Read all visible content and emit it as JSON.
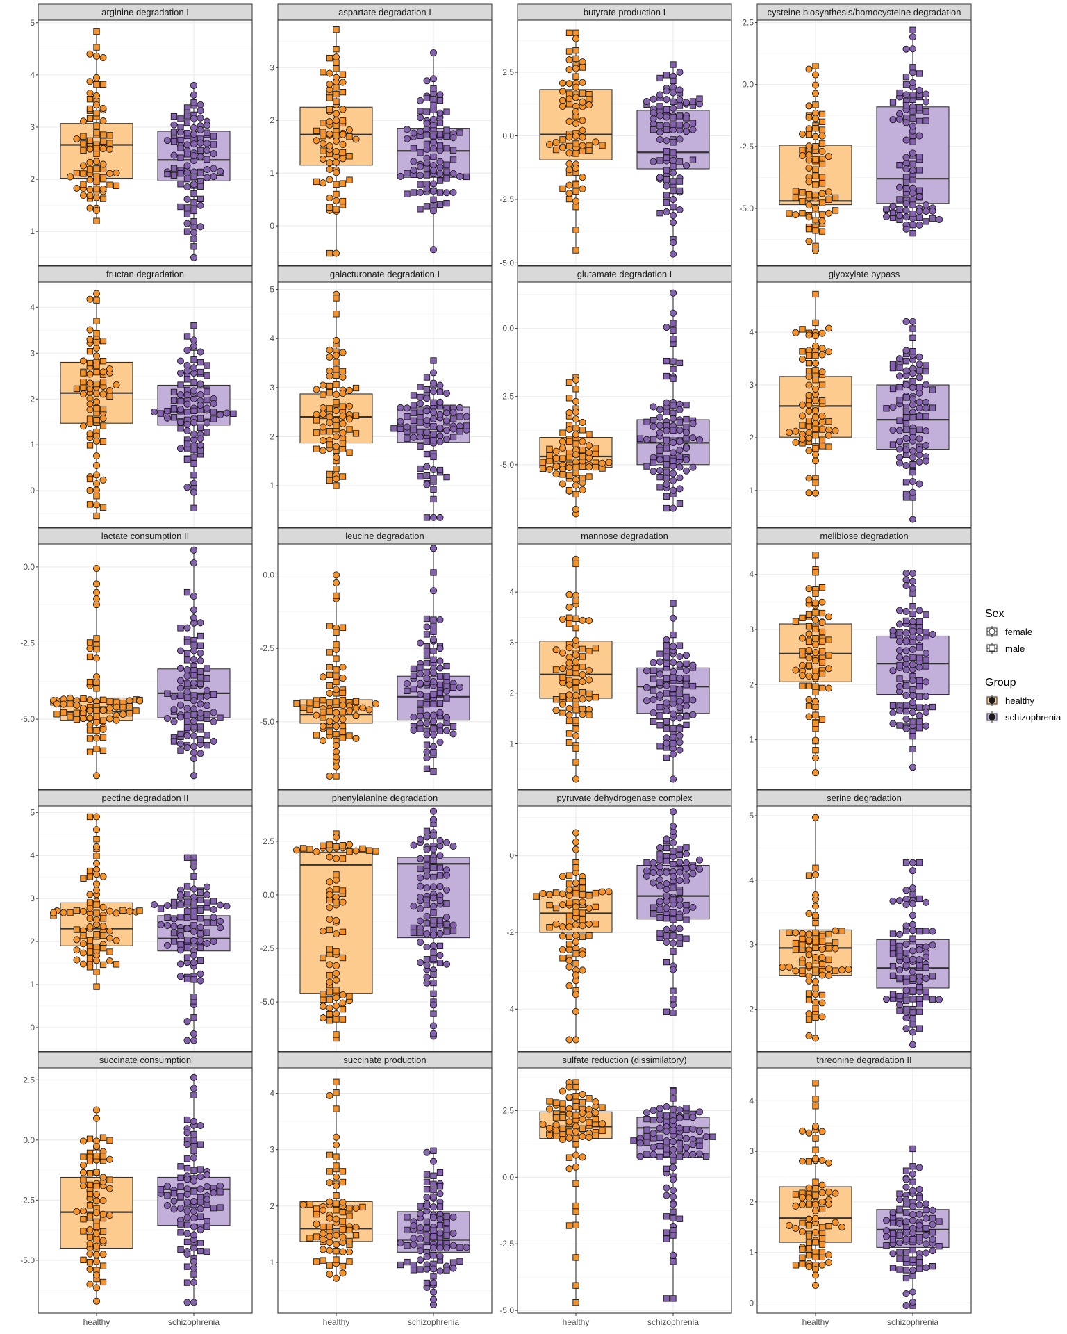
{
  "colors": {
    "healthy": "#F5932A",
    "schizophrenia": "#8462AE",
    "healthy_box": "#FDCB8E",
    "schizophrenia_box": "#C3B0DA"
  },
  "x_categories": [
    "healthy",
    "schizophrenia"
  ],
  "legend": {
    "sex_title": "Sex",
    "sex_items": [
      {
        "label": "female",
        "shape": "circle"
      },
      {
        "label": "male",
        "shape": "square"
      }
    ],
    "group_title": "Group",
    "group_items": [
      {
        "label": "healthy",
        "color": "#F5932A"
      },
      {
        "label": "schizophrenia",
        "color": "#8462AE"
      }
    ]
  },
  "chart_data": [
    {
      "type": "box",
      "title": "arginine degradation I",
      "ylim": [
        0.35,
        5.05
      ],
      "yticks": [
        1,
        2,
        3,
        4,
        5
      ],
      "ytick_labels": [
        "1",
        "2",
        "3",
        "4",
        "5"
      ],
      "series": [
        {
          "name": "healthy",
          "q1": 2.02,
          "median": 2.66,
          "q3": 3.07,
          "min": 1.2,
          "max": 4.83,
          "n": 80
        },
        {
          "name": "schizophrenia",
          "q1": 1.97,
          "median": 2.37,
          "q3": 2.92,
          "min": 0.5,
          "max": 3.8,
          "n": 100
        }
      ]
    },
    {
      "type": "box",
      "title": "aspartate degradation I",
      "ylim": [
        -0.75,
        3.9
      ],
      "yticks": [
        0,
        1,
        2,
        3
      ],
      "ytick_labels": [
        "0",
        "1",
        "2",
        "3"
      ],
      "series": [
        {
          "name": "healthy",
          "q1": 1.15,
          "median": 1.73,
          "q3": 2.25,
          "min": -0.52,
          "max": 3.72,
          "n": 80
        },
        {
          "name": "schizophrenia",
          "q1": 0.92,
          "median": 1.42,
          "q3": 1.85,
          "min": -0.45,
          "max": 3.28,
          "n": 100
        }
      ]
    },
    {
      "type": "box",
      "title": "butyrate production I",
      "ylim": [
        -5.1,
        4.55
      ],
      "yticks": [
        -5,
        -2.5,
        0,
        2.5
      ],
      "ytick_labels": [
        "-5.0",
        "-2.5",
        "0.0",
        "2.5"
      ],
      "series": [
        {
          "name": "healthy",
          "q1": -0.95,
          "median": 0.05,
          "q3": 1.82,
          "min": -4.5,
          "max": 4.05,
          "n": 80
        },
        {
          "name": "schizophrenia",
          "q1": -1.3,
          "median": -0.65,
          "q3": 1.0,
          "min": -4.65,
          "max": 2.8,
          "n": 100
        }
      ]
    },
    {
      "type": "box",
      "title": "cysteine biosynthesis/homocysteine degradation",
      "ylim": [
        -7.3,
        2.6
      ],
      "yticks": [
        -5,
        -2.5,
        0,
        2.5
      ],
      "ytick_labels": [
        "-5.0",
        "-2.5",
        "0.0",
        "2.5"
      ],
      "series": [
        {
          "name": "healthy",
          "q1": -4.85,
          "median": -4.7,
          "q3": -2.45,
          "min": -6.7,
          "max": 0.75,
          "n": 80
        },
        {
          "name": "schizophrenia",
          "q1": -4.8,
          "median": -3.8,
          "q3": -0.9,
          "min": -6.0,
          "max": 2.2,
          "n": 100
        }
      ]
    },
    {
      "type": "box",
      "title": "fructan degradation",
      "ylim": [
        -0.8,
        4.55
      ],
      "yticks": [
        0,
        1,
        2,
        3,
        4
      ],
      "ytick_labels": [
        "0",
        "1",
        "2",
        "3",
        "4"
      ],
      "series": [
        {
          "name": "healthy",
          "q1": 1.47,
          "median": 2.13,
          "q3": 2.8,
          "min": -0.55,
          "max": 4.3,
          "n": 80
        },
        {
          "name": "schizophrenia",
          "q1": 1.43,
          "median": 1.72,
          "q3": 2.3,
          "min": -0.38,
          "max": 3.6,
          "n": 100
        }
      ]
    },
    {
      "type": "box",
      "title": "galacturonate degradation I",
      "ylim": [
        0.15,
        5.15
      ],
      "yticks": [
        1,
        2,
        3,
        4,
        5
      ],
      "ytick_labels": [
        "1",
        "2",
        "3",
        "4",
        "5"
      ],
      "series": [
        {
          "name": "healthy",
          "q1": 1.87,
          "median": 2.4,
          "q3": 2.87,
          "min": 1.0,
          "max": 4.9,
          "n": 80
        },
        {
          "name": "schizophrenia",
          "q1": 1.88,
          "median": 2.15,
          "q3": 2.6,
          "min": 0.35,
          "max": 3.55,
          "n": 100
        }
      ]
    },
    {
      "type": "box",
      "title": "glutamate degradation I",
      "ylim": [
        -7.3,
        1.7
      ],
      "yticks": [
        -5,
        -2.5,
        0
      ],
      "ytick_labels": [
        "-5.0",
        "-2.5",
        "0.0"
      ],
      "series": [
        {
          "name": "healthy",
          "q1": -5.1,
          "median": -4.7,
          "q3": -4.0,
          "min": -6.8,
          "max": -1.8,
          "n": 80
        },
        {
          "name": "schizophrenia",
          "q1": -5.0,
          "median": -4.2,
          "q3": -3.35,
          "min": -6.6,
          "max": 1.3,
          "n": 100
        }
      ]
    },
    {
      "type": "box",
      "title": "glyoxylate bypass",
      "ylim": [
        0.3,
        4.95
      ],
      "yticks": [
        1,
        2,
        3,
        4
      ],
      "ytick_labels": [
        "1",
        "2",
        "3",
        "4"
      ],
      "series": [
        {
          "name": "healthy",
          "q1": 2.01,
          "median": 2.6,
          "q3": 3.16,
          "min": 0.95,
          "max": 4.72,
          "n": 80
        },
        {
          "name": "schizophrenia",
          "q1": 1.78,
          "median": 2.34,
          "q3": 3.0,
          "min": 0.45,
          "max": 4.2,
          "n": 100
        }
      ]
    },
    {
      "type": "box",
      "title": "lactate consumption II",
      "ylim": [
        -7.3,
        0.75
      ],
      "yticks": [
        -5,
        -2.5,
        0
      ],
      "ytick_labels": [
        "-5.0",
        "-2.5",
        "0.0"
      ],
      "series": [
        {
          "name": "healthy",
          "q1": -5.05,
          "median": -4.75,
          "q3": -4.3,
          "min": -6.85,
          "max": -0.05,
          "n": 80
        },
        {
          "name": "schizophrenia",
          "q1": -4.95,
          "median": -4.15,
          "q3": -3.35,
          "min": -6.85,
          "max": 0.55,
          "n": 100
        }
      ]
    },
    {
      "type": "box",
      "title": "leucine degradation",
      "ylim": [
        -7.3,
        1.05
      ],
      "yticks": [
        -5,
        -2.5,
        0
      ],
      "ytick_labels": [
        "-5.0",
        "-2.5",
        "0.0"
      ],
      "series": [
        {
          "name": "healthy",
          "q1": -5.05,
          "median": -4.75,
          "q3": -4.25,
          "min": -6.85,
          "max": 0.0,
          "n": 80
        },
        {
          "name": "schizophrenia",
          "q1": -4.95,
          "median": -4.15,
          "q3": -3.45,
          "min": -6.7,
          "max": 0.9,
          "n": 100
        }
      ]
    },
    {
      "type": "box",
      "title": "mannose degradation",
      "ylim": [
        0.1,
        4.95
      ],
      "yticks": [
        1,
        2,
        3,
        4
      ],
      "ytick_labels": [
        "1",
        "2",
        "3",
        "4"
      ],
      "series": [
        {
          "name": "healthy",
          "q1": 1.9,
          "median": 2.37,
          "q3": 3.03,
          "min": 0.3,
          "max": 4.65,
          "n": 80
        },
        {
          "name": "schizophrenia",
          "q1": 1.6,
          "median": 2.13,
          "q3": 2.5,
          "min": 0.3,
          "max": 3.78,
          "n": 100
        }
      ]
    },
    {
      "type": "box",
      "title": "melibiose degradation",
      "ylim": [
        0.1,
        4.55
      ],
      "yticks": [
        1,
        2,
        3,
        4
      ],
      "ytick_labels": [
        "1",
        "2",
        "3",
        "4"
      ],
      "series": [
        {
          "name": "healthy",
          "q1": 2.05,
          "median": 2.56,
          "q3": 3.1,
          "min": 0.4,
          "max": 4.35,
          "n": 80
        },
        {
          "name": "schizophrenia",
          "q1": 1.82,
          "median": 2.38,
          "q3": 2.88,
          "min": 0.5,
          "max": 4.02,
          "n": 100
        }
      ]
    },
    {
      "type": "box",
      "title": "pectine degradation II",
      "ylim": [
        -0.55,
        5.15
      ],
      "yticks": [
        0,
        1,
        2,
        3,
        4,
        5
      ],
      "ytick_labels": [
        "0",
        "1",
        "2",
        "3",
        "4",
        "5"
      ],
      "series": [
        {
          "name": "healthy",
          "q1": 1.9,
          "median": 2.3,
          "q3": 2.9,
          "min": 0.95,
          "max": 4.9,
          "n": 80
        },
        {
          "name": "schizophrenia",
          "q1": 1.78,
          "median": 2.07,
          "q3": 2.6,
          "min": -0.3,
          "max": 3.95,
          "n": 100
        }
      ]
    },
    {
      "type": "box",
      "title": "phenylalanine degradation",
      "ylim": [
        -7.3,
        4.15
      ],
      "yticks": [
        -5,
        -2.5,
        0,
        2.5
      ],
      "ytick_labels": [
        "-5.0",
        "-2.5",
        "0.0",
        "2.5"
      ],
      "series": [
        {
          "name": "healthy",
          "q1": -4.6,
          "median": 1.4,
          "q3": 2.0,
          "min": -6.7,
          "max": 2.85,
          "n": 80
        },
        {
          "name": "schizophrenia",
          "q1": -2.0,
          "median": 1.45,
          "q3": 1.75,
          "min": -6.6,
          "max": 3.9,
          "n": 100
        }
      ]
    },
    {
      "type": "box",
      "title": "pyruvate dehydrogenase complex",
      "ylim": [
        -5.1,
        1.3
      ],
      "yticks": [
        -4,
        -2,
        0
      ],
      "ytick_labels": [
        "-4",
        "-2",
        "0"
      ],
      "series": [
        {
          "name": "healthy",
          "q1": -2.0,
          "median": -1.5,
          "q3": -0.95,
          "min": -4.8,
          "max": 0.6,
          "n": 80
        },
        {
          "name": "schizophrenia",
          "q1": -1.65,
          "median": -1.05,
          "q3": -0.25,
          "min": -4.1,
          "max": 1.15,
          "n": 100
        }
      ]
    },
    {
      "type": "box",
      "title": "serine degradation",
      "ylim": [
        1.35,
        5.15
      ],
      "yticks": [
        2,
        3,
        4,
        5
      ],
      "ytick_labels": [
        "2",
        "3",
        "4",
        "5"
      ],
      "series": [
        {
          "name": "healthy",
          "q1": 2.52,
          "median": 2.95,
          "q3": 3.23,
          "min": 1.55,
          "max": 4.97,
          "n": 80
        },
        {
          "name": "schizophrenia",
          "q1": 2.33,
          "median": 2.64,
          "q3": 3.08,
          "min": 1.45,
          "max": 4.27,
          "n": 100
        }
      ]
    },
    {
      "type": "box",
      "title": "succinate consumption",
      "ylim": [
        -7.2,
        3.0
      ],
      "yticks": [
        -5,
        -2.5,
        0,
        2.5
      ],
      "ytick_labels": [
        "-5.0",
        "-2.5",
        "0.0",
        "2.5"
      ],
      "series": [
        {
          "name": "healthy",
          "q1": -4.5,
          "median": -3.0,
          "q3": -1.55,
          "min": -6.7,
          "max": 1.25,
          "n": 80
        },
        {
          "name": "schizophrenia",
          "q1": -3.55,
          "median": -2.05,
          "q3": -1.55,
          "min": -6.75,
          "max": 2.6,
          "n": 100
        }
      ]
    },
    {
      "type": "box",
      "title": "succinate production",
      "ylim": [
        0.1,
        4.45
      ],
      "yticks": [
        1,
        2,
        3,
        4
      ],
      "ytick_labels": [
        "1",
        "2",
        "3",
        "4"
      ],
      "series": [
        {
          "name": "healthy",
          "q1": 1.37,
          "median": 1.6,
          "q3": 2.08,
          "min": 0.72,
          "max": 4.2,
          "n": 80
        },
        {
          "name": "schizophrenia",
          "q1": 1.18,
          "median": 1.4,
          "q3": 1.9,
          "min": 0.25,
          "max": 2.98,
          "n": 100
        }
      ]
    },
    {
      "type": "box",
      "title": "sulfate reduction (dissimilatory)",
      "ylim": [
        -5.1,
        4.1
      ],
      "yticks": [
        -5,
        -2.5,
        0,
        2.5
      ],
      "ytick_labels": [
        "-5.0",
        "-2.5",
        "0.0",
        "2.5"
      ],
      "series": [
        {
          "name": "healthy",
          "q1": 1.45,
          "median": 1.9,
          "q3": 2.45,
          "min": -4.7,
          "max": 3.55,
          "n": 80
        },
        {
          "name": "schizophrenia",
          "q1": 0.75,
          "median": 1.85,
          "q3": 2.25,
          "min": -4.55,
          "max": 3.25,
          "n": 100
        }
      ]
    },
    {
      "type": "box",
      "title": "threonine degradation II",
      "ylim": [
        -0.2,
        4.65
      ],
      "yticks": [
        0,
        1,
        2,
        3,
        4
      ],
      "ytick_labels": [
        "0",
        "1",
        "2",
        "3",
        "4"
      ],
      "series": [
        {
          "name": "healthy",
          "q1": 1.2,
          "median": 1.68,
          "q3": 2.3,
          "min": 0.35,
          "max": 4.35,
          "n": 80
        },
        {
          "name": "schizophrenia",
          "q1": 1.1,
          "median": 1.45,
          "q3": 1.85,
          "min": -0.05,
          "max": 3.05,
          "n": 100
        }
      ]
    }
  ]
}
